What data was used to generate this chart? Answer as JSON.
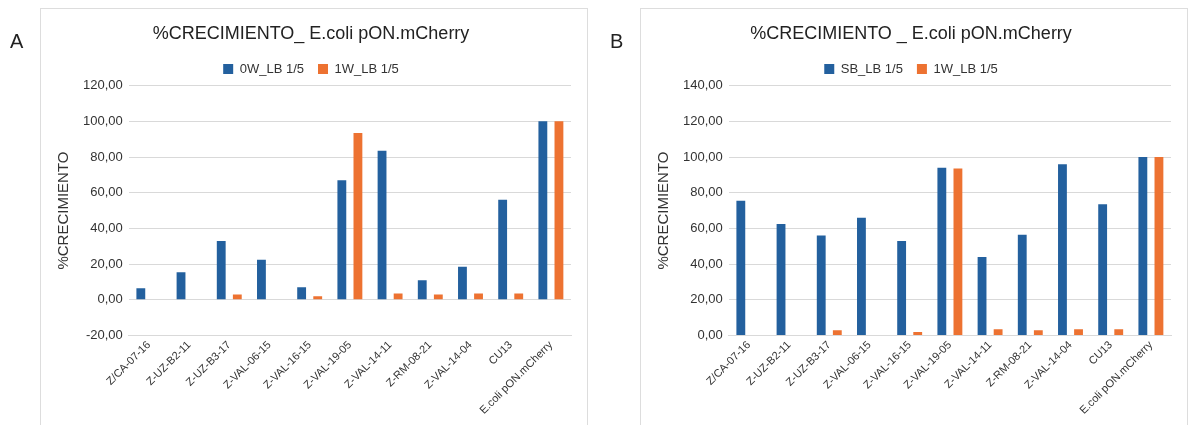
{
  "chart_data": [
    {
      "type": "bar",
      "title": "%CRECIMIENTO_ E.coli pON.mCherry",
      "ylabel": "%CRECIMIENTO",
      "annotations": [
        "A"
      ],
      "categories": [
        "Z/CA-07-16",
        "Z-UZ-B2-11",
        "Z-UZ-B3-17",
        "Z-VAL-06-15",
        "Z-VAL-16-15",
        "Z-VAL-19-05",
        "Z-VAL-14-11",
        "Z-RM-08-21",
        "Z-VAL-14-04",
        "CU13",
        "E.coli pON.mCherry"
      ],
      "series": [
        {
          "name": "0W_LB 1/5",
          "color": "#23609e",
          "values": [
            6.5,
            15.5,
            33,
            22.5,
            7,
            67,
            83.5,
            11,
            18.5,
            56,
            100
          ]
        },
        {
          "name": "1W_LB 1/5",
          "color": "#ed7231",
          "values": [
            0,
            null,
            3,
            0,
            2,
            93.5,
            3.5,
            3,
            3.5,
            3.5,
            100
          ]
        }
      ],
      "ylim": [
        -20,
        120
      ],
      "yticks": [
        {
          "value": -20,
          "label": "-20,00"
        },
        {
          "value": 0,
          "label": "0,00"
        },
        {
          "value": 20,
          "label": "20,00"
        },
        {
          "value": 40,
          "label": "40,00"
        },
        {
          "value": 60,
          "label": "60,00"
        },
        {
          "value": 80,
          "label": "80,00"
        },
        {
          "value": 100,
          "label": "100,00"
        },
        {
          "value": 120,
          "label": "120,00"
        }
      ],
      "grid": "y",
      "legend": "top"
    },
    {
      "type": "bar",
      "title": "%CRECIMIENTO _ E.coli pON.mCherry",
      "ylabel": "%CRECIMIENTO",
      "annotations": [
        "B"
      ],
      "categories": [
        "Z/CA-07-16",
        "Z-UZ-B2-11",
        "Z-UZ-B3-17",
        "Z-VAL-06-15",
        "Z-VAL-16-15",
        "Z-VAL-19-05",
        "Z-VAL-14-11",
        "Z-RM-08-21",
        "Z-VAL-14-04",
        "CU13",
        "E.coli pON.mCherry"
      ],
      "series": [
        {
          "name": "SB_LB 1/5",
          "color": "#23609e",
          "values": [
            75.5,
            62.5,
            56,
            66,
            53,
            94,
            44,
            56.5,
            96,
            73.5,
            100
          ]
        },
        {
          "name": "1W_LB 1/5",
          "color": "#ed7231",
          "values": [
            0,
            null,
            3,
            0,
            2,
            93.5,
            3.5,
            3,
            3.5,
            3.5,
            100
          ]
        }
      ],
      "ylim": [
        0,
        140
      ],
      "yticks": [
        {
          "value": 0,
          "label": "0,00"
        },
        {
          "value": 20,
          "label": "20,00"
        },
        {
          "value": 40,
          "label": "40,00"
        },
        {
          "value": 60,
          "label": "60,00"
        },
        {
          "value": 80,
          "label": "80,00"
        },
        {
          "value": 100,
          "label": "100,00"
        },
        {
          "value": 120,
          "label": "120,00"
        },
        {
          "value": 140,
          "label": "140,00"
        }
      ],
      "grid": "y",
      "legend": "top"
    }
  ]
}
